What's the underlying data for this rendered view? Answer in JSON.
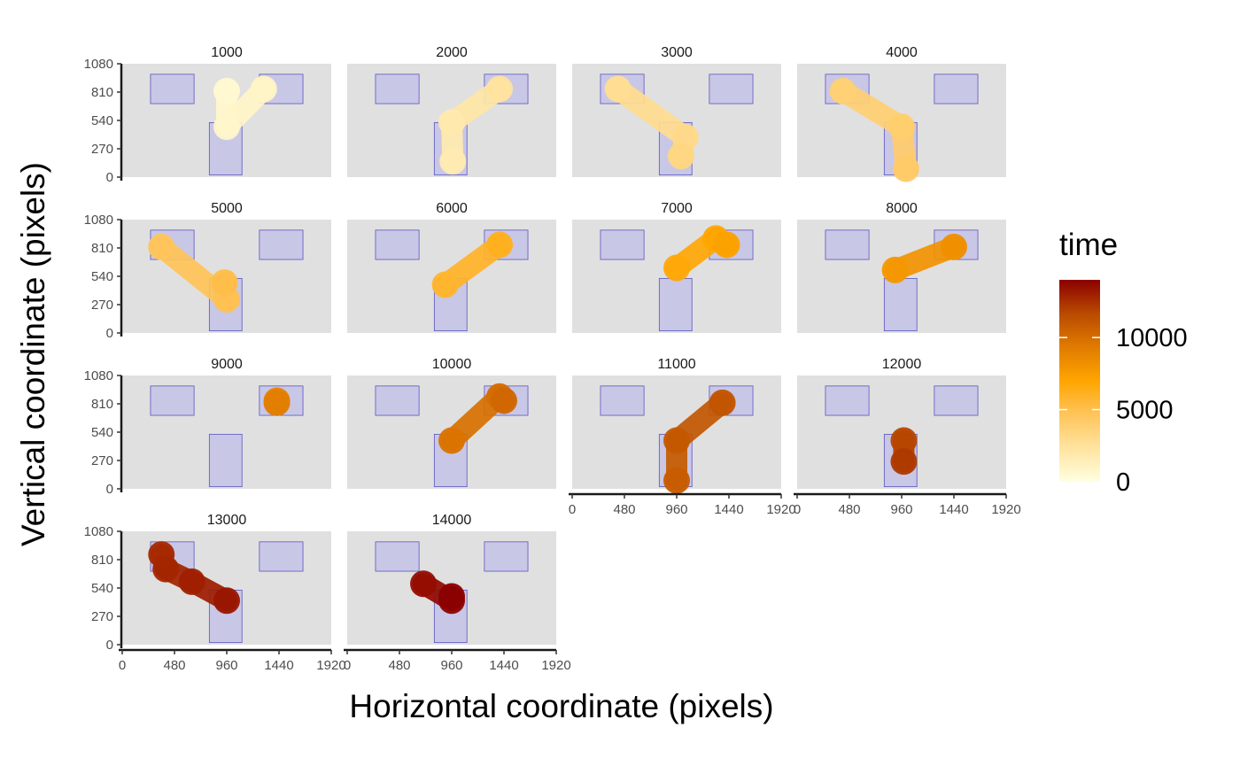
{
  "chart_data": {
    "type": "scatter",
    "subtype": "faceted gaze-path (points + connecting path)",
    "xlabel": "Horizontal coordinate (pixels)",
    "ylabel": "Vertical coordinate (pixels)",
    "xlim": [
      0,
      1920
    ],
    "ylim": [
      0,
      1080
    ],
    "x_ticks": [
      "0",
      "480",
      "960",
      "1440",
      "1920"
    ],
    "y_ticks": [
      "0",
      "270",
      "540",
      "810",
      "1080"
    ],
    "legend": {
      "title": "time",
      "position": "right",
      "range": [
        0,
        14000
      ],
      "ticks": [
        "0",
        "5000",
        "10000"
      ],
      "colors": [
        "#FFFFE0",
        "#FFE4A0",
        "#FFC45A",
        "#FFA500",
        "#E07B00",
        "#B94A00",
        "#8B0000"
      ]
    },
    "aois": [
      {
        "name": "left",
        "x": [
          260,
          660
        ],
        "y": [
          700,
          980
        ]
      },
      {
        "name": "right",
        "x": [
          1260,
          1660
        ],
        "y": [
          700,
          980
        ]
      },
      {
        "name": "bottom",
        "x": [
          800,
          1100
        ],
        "y": [
          20,
          520
        ]
      }
    ],
    "facets": [
      {
        "label": "1000",
        "points": [
          {
            "x": 960,
            "y": 820,
            "t": 600
          },
          {
            "x": 960,
            "y": 480,
            "t": 750
          },
          {
            "x": 1300,
            "y": 840,
            "t": 980
          }
        ]
      },
      {
        "label": "2000",
        "points": [
          {
            "x": 970,
            "y": 150,
            "t": 1700
          },
          {
            "x": 960,
            "y": 520,
            "t": 1900
          },
          {
            "x": 1400,
            "y": 840,
            "t": 2400
          }
        ]
      },
      {
        "label": "3000",
        "points": [
          {
            "x": 420,
            "y": 840,
            "t": 2750
          },
          {
            "x": 1040,
            "y": 380,
            "t": 3100
          },
          {
            "x": 1000,
            "y": 200,
            "t": 3300
          }
        ]
      },
      {
        "label": "4000",
        "points": [
          {
            "x": 420,
            "y": 820,
            "t": 3800
          },
          {
            "x": 960,
            "y": 480,
            "t": 4000
          },
          {
            "x": 1000,
            "y": 80,
            "t": 4200
          }
        ]
      },
      {
        "label": "5000",
        "points": [
          {
            "x": 360,
            "y": 820,
            "t": 4600
          },
          {
            "x": 960,
            "y": 320,
            "t": 4900
          },
          {
            "x": 940,
            "y": 480,
            "t": 5100
          }
        ]
      },
      {
        "label": "6000",
        "points": [
          {
            "x": 900,
            "y": 460,
            "t": 5800
          },
          {
            "x": 1400,
            "y": 840,
            "t": 6200
          }
        ]
      },
      {
        "label": "7000",
        "points": [
          {
            "x": 960,
            "y": 620,
            "t": 6800
          },
          {
            "x": 1320,
            "y": 900,
            "t": 7000
          },
          {
            "x": 1420,
            "y": 840,
            "t": 7200
          }
        ]
      },
      {
        "label": "8000",
        "points": [
          {
            "x": 900,
            "y": 600,
            "t": 7800
          },
          {
            "x": 1440,
            "y": 820,
            "t": 8200
          }
        ]
      },
      {
        "label": "9000",
        "points": [
          {
            "x": 1420,
            "y": 840,
            "t": 8800
          },
          {
            "x": 1420,
            "y": 820,
            "t": 9200
          }
        ]
      },
      {
        "label": "10000",
        "points": [
          {
            "x": 960,
            "y": 460,
            "t": 9700
          },
          {
            "x": 1400,
            "y": 880,
            "t": 10000
          },
          {
            "x": 1440,
            "y": 840,
            "t": 10300
          }
        ]
      },
      {
        "label": "11000",
        "points": [
          {
            "x": 960,
            "y": 80,
            "t": 10800
          },
          {
            "x": 960,
            "y": 460,
            "t": 11000
          },
          {
            "x": 1380,
            "y": 820,
            "t": 11200
          }
        ]
      },
      {
        "label": "12000",
        "points": [
          {
            "x": 980,
            "y": 460,
            "t": 11800
          },
          {
            "x": 980,
            "y": 260,
            "t": 12200
          }
        ]
      },
      {
        "label": "13000",
        "points": [
          {
            "x": 360,
            "y": 860,
            "t": 12700
          },
          {
            "x": 400,
            "y": 720,
            "t": 12800
          },
          {
            "x": 640,
            "y": 600,
            "t": 13000
          },
          {
            "x": 960,
            "y": 420,
            "t": 13300
          }
        ]
      },
      {
        "label": "14000",
        "points": [
          {
            "x": 700,
            "y": 580,
            "t": 13600
          },
          {
            "x": 960,
            "y": 420,
            "t": 13900
          },
          {
            "x": 960,
            "y": 460,
            "t": 14100
          }
        ]
      }
    ]
  }
}
